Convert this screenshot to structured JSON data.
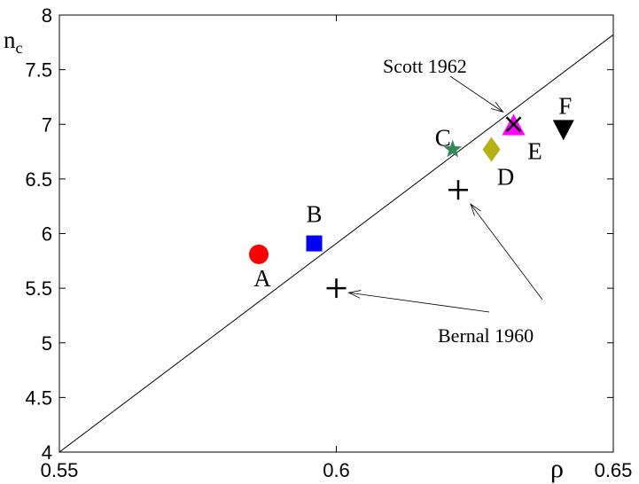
{
  "chart_data": {
    "type": "scatter",
    "xlabel": "ρ",
    "ylabel": "n",
    "ylabel_subscript": "c",
    "xlim": [
      0.55,
      0.65
    ],
    "ylim": [
      4,
      8
    ],
    "x_ticks": [
      "0.55",
      "0.6",
      "0.65"
    ],
    "y_ticks": [
      "4",
      "4.5",
      "5",
      "5.5",
      "6",
      "6.5",
      "7",
      "7.5",
      "8"
    ],
    "grid": false,
    "line": {
      "x": [
        0.55,
        0.65
      ],
      "y": [
        4.0,
        7.82
      ]
    },
    "points": [
      {
        "label": "A",
        "x": 0.586,
        "y": 5.81,
        "marker": "circle",
        "color": "#ff0000"
      },
      {
        "label": "B",
        "x": 0.596,
        "y": 5.91,
        "marker": "square",
        "color": "#0000ff"
      },
      {
        "label": "C",
        "x": 0.621,
        "y": 6.77,
        "marker": "star",
        "color": "#2e8b57"
      },
      {
        "label": "D",
        "x": 0.628,
        "y": 6.77,
        "marker": "diamond",
        "color": "#b5b212"
      },
      {
        "label": "E",
        "x": 0.632,
        "y": 6.99,
        "marker": "triangle-up",
        "color": "#ff00ff"
      },
      {
        "label": "F",
        "x": 0.641,
        "y": 6.95,
        "marker": "triangle-down",
        "color": "#000000"
      },
      {
        "label": "",
        "x": 0.6,
        "y": 5.5,
        "marker": "plus",
        "color": "#000000"
      },
      {
        "label": "",
        "x": 0.622,
        "y": 6.4,
        "marker": "plus",
        "color": "#000000"
      },
      {
        "label": "",
        "x": 0.632,
        "y": 7.0,
        "marker": "x",
        "color": "#000000"
      }
    ],
    "annotations": [
      {
        "text": "Scott 1962"
      },
      {
        "text": "Bernal 1960"
      }
    ]
  }
}
